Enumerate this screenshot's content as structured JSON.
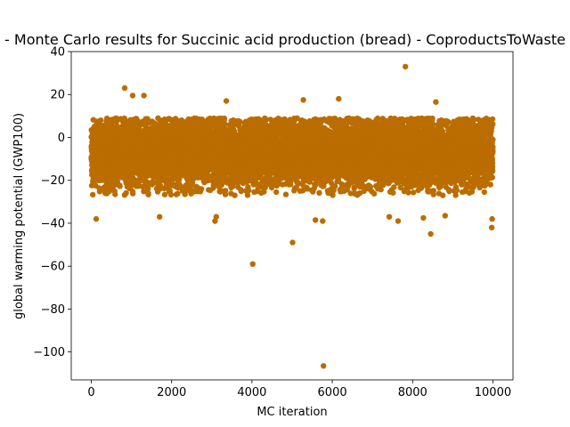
{
  "chart_data": {
    "type": "scatter",
    "title": "- Monte Carlo results for Succinic acid production (bread) - CoproductsToWaste",
    "xlabel": "MC iteration",
    "ylabel": "global warming potential (GWP100)",
    "xlim": [
      -500,
      10500
    ],
    "ylim": [
      -113,
      40
    ],
    "xticks": [
      0,
      2000,
      4000,
      6000,
      8000,
      10000
    ],
    "yticks": [
      40,
      20,
      0,
      -20,
      -40,
      -60,
      -80,
      -100
    ],
    "ytick_labels": [
      "40",
      "20",
      "0",
      "−20",
      "−40",
      "−60",
      "−80",
      "−100"
    ],
    "grid": false,
    "marker_color": "#bb6d00",
    "series": [
      {
        "n_points": 10000,
        "bulk_y_range": [
          -27,
          9
        ],
        "center_y": -7,
        "outliers": [
          {
            "x": 830,
            "y": 23
          },
          {
            "x": 1030,
            "y": 19.5
          },
          {
            "x": 1310,
            "y": 19.5
          },
          {
            "x": 7820,
            "y": 33
          },
          {
            "x": 6160,
            "y": 18
          },
          {
            "x": 5280,
            "y": 17.5
          },
          {
            "x": 3360,
            "y": 17
          },
          {
            "x": 8580,
            "y": 16.5
          },
          {
            "x": 5010,
            "y": -49
          },
          {
            "x": 4020,
            "y": -59
          },
          {
            "x": 5780,
            "y": -106.5
          },
          {
            "x": 8450,
            "y": -45
          },
          {
            "x": 9970,
            "y": -42
          },
          {
            "x": 9980,
            "y": -38
          },
          {
            "x": 3080,
            "y": -39
          },
          {
            "x": 5580,
            "y": -38.5
          },
          {
            "x": 5760,
            "y": -39
          },
          {
            "x": 7640,
            "y": -39
          },
          {
            "x": 8270,
            "y": -37.5
          },
          {
            "x": 8810,
            "y": -36.5
          },
          {
            "x": 120,
            "y": -38
          },
          {
            "x": 3110,
            "y": -37
          },
          {
            "x": 1700,
            "y": -37
          },
          {
            "x": 7420,
            "y": -37
          }
        ]
      }
    ]
  }
}
